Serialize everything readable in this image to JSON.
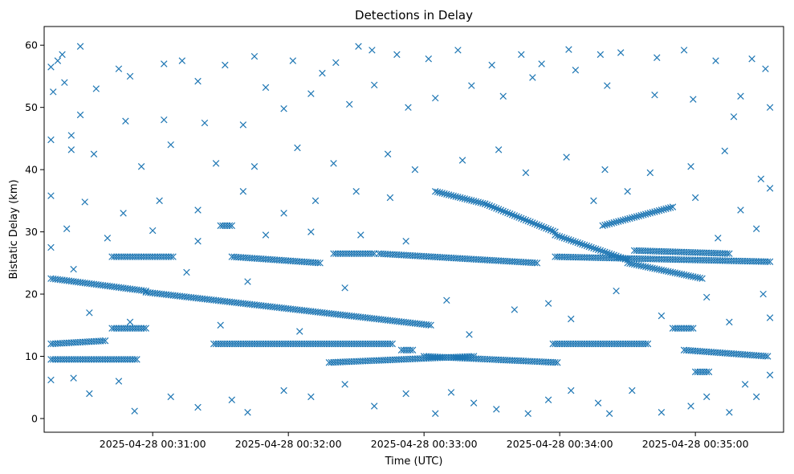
{
  "chart_data": {
    "type": "scatter",
    "title": "Detections in Delay",
    "xlabel": "Time (UTC)",
    "ylabel": "Bistatic Delay (km)",
    "x_tick_labels": [
      "2025-04-28 00:31:00",
      "2025-04-28 00:32:00",
      "2025-04-28 00:33:00",
      "2025-04-28 00:34:00",
      "2025-04-28 00:35:00"
    ],
    "y_tick_labels": [
      "0",
      "10",
      "20",
      "30",
      "40",
      "50",
      "60"
    ],
    "xlim": [
      "2025-04-28 00:30:12",
      "2025-04-28 00:35:39"
    ],
    "ylim": [
      -2.2,
      63
    ],
    "grid": false,
    "marker": "x",
    "color": "#1f77b4",
    "tracks": [
      {
        "start": [
          "2025-04-28 00:30:15",
          22.5
        ],
        "end": [
          "2025-04-28 00:30:57",
          20.5
        ]
      },
      {
        "start": [
          "2025-04-28 00:30:57",
          20.3
        ],
        "end": [
          "2025-04-28 00:33:03",
          15.0
        ]
      },
      {
        "start": [
          "2025-04-28 00:30:15",
          12.0
        ],
        "end": [
          "2025-04-28 00:30:39",
          12.5
        ]
      },
      {
        "start": [
          "2025-04-28 00:30:15",
          9.5
        ],
        "end": [
          "2025-04-28 00:30:53",
          9.5
        ]
      },
      {
        "start": [
          "2025-04-28 00:30:42",
          26.0
        ],
        "end": [
          "2025-04-28 00:31:09",
          26.0
        ]
      },
      {
        "start": [
          "2025-04-28 00:30:42",
          14.5
        ],
        "end": [
          "2025-04-28 00:30:57",
          14.5
        ]
      },
      {
        "start": [
          "2025-04-28 00:31:30",
          31.0
        ],
        "end": [
          "2025-04-28 00:31:35",
          31.0
        ]
      },
      {
        "start": [
          "2025-04-28 00:31:27",
          12.0
        ],
        "end": [
          "2025-04-28 00:32:46",
          12.0
        ]
      },
      {
        "start": [
          "2025-04-28 00:31:35",
          26.0
        ],
        "end": [
          "2025-04-28 00:32:14",
          25.0
        ]
      },
      {
        "start": [
          "2025-04-28 00:32:20",
          26.5
        ],
        "end": [
          "2025-04-28 00:32:38",
          26.5
        ]
      },
      {
        "start": [
          "2025-04-28 00:32:40",
          26.5
        ],
        "end": [
          "2025-04-28 00:33:50",
          25.0
        ]
      },
      {
        "start": [
          "2025-04-28 00:32:18",
          9.0
        ],
        "end": [
          "2025-04-28 00:33:22",
          10.0
        ]
      },
      {
        "start": [
          "2025-04-28 00:32:50",
          11.0
        ],
        "end": [
          "2025-04-28 00:32:55",
          11.0
        ]
      },
      {
        "start": [
          "2025-04-28 00:33:05",
          36.5
        ],
        "end": [
          "2025-04-28 00:33:27",
          34.5
        ]
      },
      {
        "start": [
          "2025-04-28 00:33:27",
          34.5
        ],
        "end": [
          "2025-04-28 00:33:58",
          30.0
        ]
      },
      {
        "start": [
          "2025-04-28 00:33:58",
          29.5
        ],
        "end": [
          "2025-04-28 00:34:30",
          25.5
        ]
      },
      {
        "start": [
          "2025-04-28 00:34:30",
          25.0
        ],
        "end": [
          "2025-04-28 00:35:03",
          22.5
        ]
      },
      {
        "start": [
          "2025-04-28 00:33:58",
          26.0
        ],
        "end": [
          "2025-04-28 00:35:33",
          25.2
        ]
      },
      {
        "start": [
          "2025-04-28 00:34:33",
          27.0
        ],
        "end": [
          "2025-04-28 00:35:15",
          26.5
        ]
      },
      {
        "start": [
          "2025-04-28 00:33:00",
          10.0
        ],
        "end": [
          "2025-04-28 00:33:59",
          9.0
        ]
      },
      {
        "start": [
          "2025-04-28 00:33:57",
          12.0
        ],
        "end": [
          "2025-04-28 00:34:39",
          12.0
        ]
      },
      {
        "start": [
          "2025-04-28 00:34:50",
          14.5
        ],
        "end": [
          "2025-04-28 00:34:59",
          14.5
        ]
      },
      {
        "start": [
          "2025-04-28 00:34:55",
          11.0
        ],
        "end": [
          "2025-04-28 00:35:32",
          10.0
        ]
      },
      {
        "start": [
          "2025-04-28 00:34:19",
          31.0
        ],
        "end": [
          "2025-04-28 00:34:50",
          34.0
        ]
      },
      {
        "start": [
          "2025-04-28 00:35:00",
          7.5
        ],
        "end": [
          "2025-04-28 00:35:06",
          7.5
        ]
      }
    ],
    "scattered_points": [
      [
        "2025-04-28 00:30:15",
        56.5
      ],
      [
        "2025-04-28 00:30:16",
        52.5
      ],
      [
        "2025-04-28 00:30:18",
        57.5
      ],
      [
        "2025-04-28 00:30:20",
        58.5
      ],
      [
        "2025-04-28 00:30:21",
        54.0
      ],
      [
        "2025-04-28 00:30:24",
        45.5
      ],
      [
        "2025-04-28 00:30:28",
        59.8
      ],
      [
        "2025-04-28 00:30:35",
        53.0
      ],
      [
        "2025-04-28 00:30:15",
        44.8
      ],
      [
        "2025-04-28 00:30:24",
        43.2
      ],
      [
        "2025-04-28 00:30:45",
        56.2
      ],
      [
        "2025-04-28 00:30:50",
        55.0
      ],
      [
        "2025-04-28 00:31:05",
        57.0
      ],
      [
        "2025-04-28 00:31:13",
        57.5
      ],
      [
        "2025-04-28 00:31:20",
        54.2
      ],
      [
        "2025-04-28 00:31:32",
        56.8
      ],
      [
        "2025-04-28 00:31:45",
        58.2
      ],
      [
        "2025-04-28 00:31:50",
        53.2
      ],
      [
        "2025-04-28 00:32:02",
        57.5
      ],
      [
        "2025-04-28 00:32:15",
        55.5
      ],
      [
        "2025-04-28 00:32:21",
        57.2
      ],
      [
        "2025-04-28 00:32:31",
        59.8
      ],
      [
        "2025-04-28 00:32:37",
        59.2
      ],
      [
        "2025-04-28 00:32:48",
        58.5
      ],
      [
        "2025-04-28 00:33:02",
        57.8
      ],
      [
        "2025-04-28 00:33:15",
        59.2
      ],
      [
        "2025-04-28 00:33:30",
        56.8
      ],
      [
        "2025-04-28 00:33:43",
        58.5
      ],
      [
        "2025-04-28 00:33:52",
        57.0
      ],
      [
        "2025-04-28 00:34:04",
        59.3
      ],
      [
        "2025-04-28 00:34:18",
        58.5
      ],
      [
        "2025-04-28 00:34:27",
        58.8
      ],
      [
        "2025-04-28 00:34:43",
        58.0
      ],
      [
        "2025-04-28 00:34:55",
        59.2
      ],
      [
        "2025-04-28 00:35:09",
        57.5
      ],
      [
        "2025-04-28 00:35:25",
        57.8
      ],
      [
        "2025-04-28 00:35:31",
        56.2
      ],
      [
        "2025-04-28 00:35:33",
        50.0
      ],
      [
        "2025-04-28 00:35:20",
        51.8
      ],
      [
        "2025-04-28 00:35:17",
        48.5
      ],
      [
        "2025-04-28 00:34:59",
        51.3
      ],
      [
        "2025-04-28 00:34:42",
        52.0
      ],
      [
        "2025-04-28 00:34:21",
        53.5
      ],
      [
        "2025-04-28 00:34:07",
        56.0
      ],
      [
        "2025-04-28 00:33:48",
        54.8
      ],
      [
        "2025-04-28 00:33:35",
        51.8
      ],
      [
        "2025-04-28 00:33:21",
        53.5
      ],
      [
        "2025-04-28 00:33:05",
        51.5
      ],
      [
        "2025-04-28 00:32:53",
        50.0
      ],
      [
        "2025-04-28 00:32:38",
        53.6
      ],
      [
        "2025-04-28 00:32:27",
        50.5
      ],
      [
        "2025-04-28 00:32:10",
        52.2
      ],
      [
        "2025-04-28 00:31:58",
        49.8
      ],
      [
        "2025-04-28 00:31:40",
        47.2
      ],
      [
        "2025-04-28 00:31:23",
        47.5
      ],
      [
        "2025-04-28 00:31:05",
        48.0
      ],
      [
        "2025-04-28 00:30:48",
        47.8
      ],
      [
        "2025-04-28 00:30:34",
        42.5
      ],
      [
        "2025-04-28 00:30:28",
        48.8
      ],
      [
        "2025-04-28 00:30:55",
        40.5
      ],
      [
        "2025-04-28 00:31:08",
        44.0
      ],
      [
        "2025-04-28 00:31:28",
        41.0
      ],
      [
        "2025-04-28 00:31:45",
        40.5
      ],
      [
        "2025-04-28 00:32:04",
        43.5
      ],
      [
        "2025-04-28 00:32:20",
        41.0
      ],
      [
        "2025-04-28 00:32:44",
        42.5
      ],
      [
        "2025-04-28 00:32:56",
        40.0
      ],
      [
        "2025-04-28 00:33:17",
        41.5
      ],
      [
        "2025-04-28 00:33:33",
        43.2
      ],
      [
        "2025-04-28 00:33:45",
        39.5
      ],
      [
        "2025-04-28 00:34:03",
        42.0
      ],
      [
        "2025-04-28 00:34:20",
        40.0
      ],
      [
        "2025-04-28 00:34:40",
        39.5
      ],
      [
        "2025-04-28 00:34:58",
        40.5
      ],
      [
        "2025-04-28 00:35:13",
        43.0
      ],
      [
        "2025-04-28 00:35:29",
        38.5
      ],
      [
        "2025-04-28 00:30:15",
        35.8
      ],
      [
        "2025-04-28 00:30:30",
        34.8
      ],
      [
        "2025-04-28 00:30:47",
        33.0
      ],
      [
        "2025-04-28 00:31:03",
        35.0
      ],
      [
        "2025-04-28 00:31:20",
        33.5
      ],
      [
        "2025-04-28 00:31:40",
        36.5
      ],
      [
        "2025-04-28 00:31:58",
        33.0
      ],
      [
        "2025-04-28 00:32:12",
        35.0
      ],
      [
        "2025-04-28 00:32:30",
        36.5
      ],
      [
        "2025-04-28 00:32:45",
        35.5
      ],
      [
        "2025-04-28 00:34:15",
        35.0
      ],
      [
        "2025-04-28 00:34:30",
        36.5
      ],
      [
        "2025-04-28 00:35:00",
        35.5
      ],
      [
        "2025-04-28 00:35:20",
        33.5
      ],
      [
        "2025-04-28 00:35:33",
        37.0
      ],
      [
        "2025-04-28 00:30:22",
        30.5
      ],
      [
        "2025-04-28 00:30:40",
        29.0
      ],
      [
        "2025-04-28 00:31:00",
        30.2
      ],
      [
        "2025-04-28 00:31:20",
        28.5
      ],
      [
        "2025-04-28 00:31:50",
        29.5
      ],
      [
        "2025-04-28 00:32:10",
        30.0
      ],
      [
        "2025-04-28 00:32:32",
        29.5
      ],
      [
        "2025-04-28 00:32:52",
        28.5
      ],
      [
        "2025-04-28 00:35:10",
        29.0
      ],
      [
        "2025-04-28 00:35:27",
        30.5
      ],
      [
        "2025-04-28 00:30:15",
        27.5
      ],
      [
        "2025-04-28 00:30:25",
        24.0
      ],
      [
        "2025-04-28 00:31:15",
        23.5
      ],
      [
        "2025-04-28 00:31:42",
        22.0
      ],
      [
        "2025-04-28 00:32:25",
        21.0
      ],
      [
        "2025-04-28 00:33:10",
        19.0
      ],
      [
        "2025-04-28 00:33:55",
        18.5
      ],
      [
        "2025-04-28 00:34:25",
        20.5
      ],
      [
        "2025-04-28 00:35:05",
        19.5
      ],
      [
        "2025-04-28 00:35:30",
        20.0
      ],
      [
        "2025-04-28 00:30:32",
        17.0
      ],
      [
        "2025-04-28 00:30:50",
        15.5
      ],
      [
        "2025-04-28 00:31:30",
        15.0
      ],
      [
        "2025-04-28 00:32:05",
        14.0
      ],
      [
        "2025-04-28 00:33:20",
        13.5
      ],
      [
        "2025-04-28 00:33:40",
        17.5
      ],
      [
        "2025-04-28 00:34:05",
        16.0
      ],
      [
        "2025-04-28 00:34:45",
        16.5
      ],
      [
        "2025-04-28 00:35:15",
        15.5
      ],
      [
        "2025-04-28 00:35:33",
        16.2
      ],
      [
        "2025-04-28 00:30:15",
        6.2
      ],
      [
        "2025-04-28 00:30:25",
        6.5
      ],
      [
        "2025-04-28 00:30:32",
        4.0
      ],
      [
        "2025-04-28 00:30:45",
        6.0
      ],
      [
        "2025-04-28 00:30:52",
        1.2
      ],
      [
        "2025-04-28 00:31:08",
        3.5
      ],
      [
        "2025-04-28 00:31:20",
        1.8
      ],
      [
        "2025-04-28 00:31:35",
        3.0
      ],
      [
        "2025-04-28 00:31:42",
        1.0
      ],
      [
        "2025-04-28 00:31:58",
        4.5
      ],
      [
        "2025-04-28 00:32:10",
        3.5
      ],
      [
        "2025-04-28 00:32:25",
        5.5
      ],
      [
        "2025-04-28 00:32:38",
        2.0
      ],
      [
        "2025-04-28 00:32:52",
        4.0
      ],
      [
        "2025-04-28 00:33:05",
        0.8
      ],
      [
        "2025-04-28 00:33:12",
        4.2
      ],
      [
        "2025-04-28 00:33:22",
        2.5
      ],
      [
        "2025-04-28 00:33:32",
        1.5
      ],
      [
        "2025-04-28 00:33:46",
        0.8
      ],
      [
        "2025-04-28 00:33:55",
        3.0
      ],
      [
        "2025-04-28 00:34:05",
        4.5
      ],
      [
        "2025-04-28 00:34:17",
        2.5
      ],
      [
        "2025-04-28 00:34:22",
        0.8
      ],
      [
        "2025-04-28 00:34:32",
        4.5
      ],
      [
        "2025-04-28 00:34:45",
        1.0
      ],
      [
        "2025-04-28 00:34:58",
        2.0
      ],
      [
        "2025-04-28 00:35:05",
        3.5
      ],
      [
        "2025-04-28 00:35:15",
        1.0
      ],
      [
        "2025-04-28 00:35:22",
        5.5
      ],
      [
        "2025-04-28 00:35:27",
        3.5
      ],
      [
        "2025-04-28 00:35:33",
        7.0
      ]
    ]
  }
}
